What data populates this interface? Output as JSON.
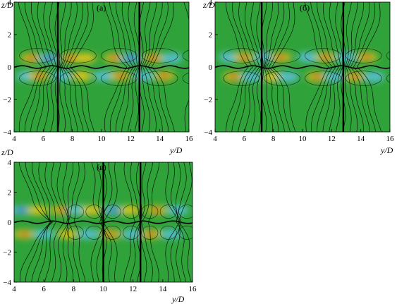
{
  "chart_data": [
    {
      "type": "heatmap",
      "label": "(а)",
      "xlabel": "y/D",
      "ylabel": "z/D",
      "xlim": [
        4,
        16
      ],
      "ylim": [
        -4,
        4
      ],
      "xticks": [
        4,
        6,
        8,
        10,
        12,
        14,
        16
      ],
      "yticks": [
        -4,
        -2,
        0,
        2,
        4
      ],
      "background_color": "#2fa23a",
      "blobs": [
        {
          "y": 5.2,
          "z": 0.55,
          "v": 0.9
        },
        {
          "y": 6.4,
          "z": 0.55,
          "v": -0.8
        },
        {
          "y": 7.9,
          "z": 0.55,
          "v": 0.8
        },
        {
          "y": 8.9,
          "z": 0.55,
          "v": 0.6
        },
        {
          "y": 10.9,
          "z": 0.55,
          "v": 0.9
        },
        {
          "y": 12.0,
          "z": 0.55,
          "v": -0.8
        },
        {
          "y": 13.6,
          "z": 0.55,
          "v": 0.8
        },
        {
          "y": 14.8,
          "z": 0.55,
          "v": -0.5
        },
        {
          "y": 4.9,
          "z": -0.55,
          "v": -0.6
        },
        {
          "y": 5.7,
          "z": -0.55,
          "v": 0.9
        },
        {
          "y": 7.3,
          "z": -0.55,
          "v": -0.7
        },
        {
          "y": 8.6,
          "z": -0.55,
          "v": 0.7
        },
        {
          "y": 10.2,
          "z": -0.55,
          "v": -0.6
        },
        {
          "y": 11.3,
          "z": -0.55,
          "v": 0.9
        },
        {
          "y": 12.9,
          "z": -0.55,
          "v": -0.6
        },
        {
          "y": 14.3,
          "z": -0.55,
          "v": 0.8
        }
      ],
      "separatrices": [
        7.0,
        12.6
      ],
      "stagnation_z": 0
    },
    {
      "type": "heatmap",
      "label": "(б)",
      "xlabel": "y/D",
      "ylabel": "z/D",
      "xlim": [
        4,
        16
      ],
      "ylim": [
        -4,
        4
      ],
      "xticks": [
        4,
        6,
        8,
        10,
        12,
        14,
        16
      ],
      "yticks": [
        -4,
        -2,
        0,
        2,
        4
      ],
      "background_color": "#2fa23a",
      "blobs": [
        {
          "y": 5.0,
          "z": 0.6,
          "v": -0.6
        },
        {
          "y": 6.0,
          "z": 0.6,
          "v": 0.8
        },
        {
          "y": 7.4,
          "z": 0.6,
          "v": -0.7
        },
        {
          "y": 8.5,
          "z": 0.6,
          "v": 0.9
        },
        {
          "y": 10.4,
          "z": 0.6,
          "v": -0.6
        },
        {
          "y": 11.6,
          "z": 0.6,
          "v": 0.8
        },
        {
          "y": 13.0,
          "z": 0.6,
          "v": -0.7
        },
        {
          "y": 14.4,
          "z": 0.6,
          "v": 0.9
        },
        {
          "y": 5.3,
          "z": -0.6,
          "v": 0.9
        },
        {
          "y": 6.5,
          "z": -0.6,
          "v": -0.7
        },
        {
          "y": 8.0,
          "z": -0.6,
          "v": 0.7
        },
        {
          "y": 9.0,
          "z": -0.6,
          "v": -0.5
        },
        {
          "y": 11.0,
          "z": -0.6,
          "v": 0.9
        },
        {
          "y": 12.2,
          "z": -0.6,
          "v": -0.7
        },
        {
          "y": 13.6,
          "z": -0.6,
          "v": 0.8
        },
        {
          "y": 14.9,
          "z": -0.6,
          "v": -0.5
        }
      ],
      "separatrices": [
        7.2,
        12.8
      ],
      "stagnation_z": 0
    },
    {
      "type": "heatmap",
      "label": "(в)",
      "xlabel": "y/D",
      "ylabel": "z/D",
      "xlim": [
        4,
        16
      ],
      "ylim": [
        -4,
        4
      ],
      "xticks": [
        4,
        6,
        8,
        10,
        12,
        14,
        16
      ],
      "yticks": [
        -4,
        -2,
        0,
        2,
        4
      ],
      "background_color": "#2fa23a",
      "blobs": [
        {
          "y": 4.5,
          "z": 0.8,
          "v": -0.8
        },
        {
          "y": 5.6,
          "z": 0.8,
          "v": 0.5
        },
        {
          "y": 7.2,
          "z": 0.8,
          "v": 0.9
        },
        {
          "y": 8.3,
          "z": 0.8,
          "v": -0.6
        },
        {
          "y": 9.2,
          "z": 0.8,
          "v": 0.7
        },
        {
          "y": 10.7,
          "z": 0.8,
          "v": -0.8
        },
        {
          "y": 11.8,
          "z": 0.8,
          "v": 0.6
        },
        {
          "y": 13.6,
          "z": 0.8,
          "v": 0.9
        },
        {
          "y": 15.0,
          "z": 0.8,
          "v": -0.7
        },
        {
          "y": 4.7,
          "z": -0.8,
          "v": 0.9
        },
        {
          "y": 6.0,
          "z": -0.8,
          "v": -0.6
        },
        {
          "y": 7.6,
          "z": -0.8,
          "v": 0.7
        },
        {
          "y": 9.0,
          "z": -0.8,
          "v": -0.7
        },
        {
          "y": 10.5,
          "z": -0.8,
          "v": 0.9
        },
        {
          "y": 12.0,
          "z": -0.8,
          "v": -0.6
        },
        {
          "y": 13.2,
          "z": -0.8,
          "v": 0.8
        },
        {
          "y": 14.6,
          "z": -0.8,
          "v": -0.6
        }
      ],
      "separatrices": [
        10.0,
        12.5
      ],
      "stagnation_z": 0
    }
  ]
}
